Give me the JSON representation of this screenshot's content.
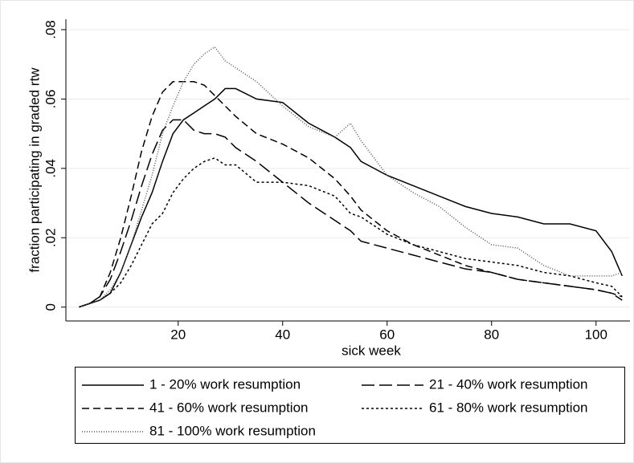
{
  "chart_data": {
    "type": "line",
    "xlabel": "sick week",
    "ylabel": "fraction participating in graded rtw",
    "x": [
      1,
      3,
      5,
      7,
      9,
      11,
      13,
      15,
      17,
      19,
      21,
      23,
      25,
      27,
      29,
      31,
      35,
      40,
      45,
      50,
      53,
      55,
      60,
      65,
      70,
      75,
      80,
      85,
      90,
      95,
      100,
      103,
      105
    ],
    "series": [
      {
        "name": "1 - 20% work resumption",
        "color": "#000000",
        "style": "solid",
        "values": [
          0,
          0.001,
          0.002,
          0.004,
          0.01,
          0.018,
          0.026,
          0.033,
          0.042,
          0.05,
          0.054,
          0.056,
          0.058,
          0.06,
          0.063,
          0.063,
          0.06,
          0.059,
          0.053,
          0.049,
          0.046,
          0.042,
          0.038,
          0.035,
          0.032,
          0.029,
          0.027,
          0.026,
          0.024,
          0.024,
          0.022,
          0.016,
          0.009
        ]
      },
      {
        "name": "21 - 40% work resumption",
        "color": "#000000",
        "style": "longdash",
        "values": [
          0,
          0.001,
          0.003,
          0.008,
          0.016,
          0.025,
          0.035,
          0.044,
          0.051,
          0.054,
          0.054,
          0.051,
          0.05,
          0.05,
          0.049,
          0.046,
          0.042,
          0.036,
          0.03,
          0.025,
          0.022,
          0.019,
          0.017,
          0.015,
          0.013,
          0.011,
          0.01,
          0.008,
          0.007,
          0.006,
          0.005,
          0.004,
          0.002
        ]
      },
      {
        "name": "41 - 60% work resumption",
        "color": "#000000",
        "style": "dash",
        "values": [
          0,
          0.001,
          0.003,
          0.01,
          0.02,
          0.032,
          0.045,
          0.055,
          0.062,
          0.065,
          0.065,
          0.065,
          0.064,
          0.061,
          0.058,
          0.055,
          0.05,
          0.047,
          0.043,
          0.037,
          0.032,
          0.028,
          0.022,
          0.018,
          0.015,
          0.012,
          0.01,
          0.008,
          0.007,
          0.006,
          0.005,
          0.004,
          0.003
        ]
      },
      {
        "name": "61 - 80% work resumption",
        "color": "#000000",
        "style": "dot",
        "values": [
          0,
          0.001,
          0.002,
          0.004,
          0.007,
          0.012,
          0.018,
          0.024,
          0.027,
          0.033,
          0.037,
          0.04,
          0.042,
          0.043,
          0.041,
          0.041,
          0.036,
          0.036,
          0.035,
          0.032,
          0.027,
          0.026,
          0.021,
          0.018,
          0.016,
          0.014,
          0.013,
          0.012,
          0.01,
          0.009,
          0.007,
          0.006,
          0.003
        ]
      },
      {
        "name": "81 - 100% work resumption",
        "color": "#555555",
        "style": "finedot",
        "values": [
          0,
          0.001,
          0.002,
          0.005,
          0.01,
          0.018,
          0.028,
          0.038,
          0.05,
          0.058,
          0.065,
          0.07,
          0.073,
          0.075,
          0.071,
          0.069,
          0.065,
          0.058,
          0.052,
          0.049,
          0.053,
          0.048,
          0.038,
          0.033,
          0.029,
          0.023,
          0.018,
          0.017,
          0.012,
          0.009,
          0.009,
          0.009,
          0.01
        ]
      }
    ],
    "xlim": [
      -1.5,
      106.5
    ],
    "xticks": [
      20,
      40,
      60,
      80,
      100
    ],
    "ylim": [
      -0.004,
      0.083
    ],
    "yticks": [
      0,
      {
        "value": 0.02,
        "label": ".02"
      },
      {
        "value": 0.04,
        "label": ".04"
      },
      {
        "value": 0.06,
        "label": ".06"
      },
      {
        "value": 0.08,
        "label": ".08"
      }
    ],
    "legend": "bottom",
    "grid": true
  }
}
